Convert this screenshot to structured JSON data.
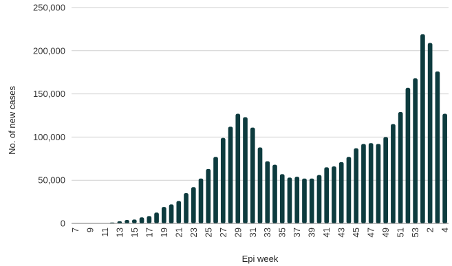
{
  "chart_data": {
    "type": "bar",
    "title": "",
    "xlabel": "Epi week",
    "ylabel": "No. of new cases",
    "ylim": [
      0,
      250000
    ],
    "yticks": [
      0,
      50000,
      100000,
      150000,
      200000,
      250000
    ],
    "ytick_labels": [
      "0",
      "50,000",
      "100,000",
      "150,000",
      "200,000",
      "250,000"
    ],
    "grid": "horizontal",
    "bar_color": "#0d3b3e",
    "categories": [
      "7",
      "8",
      "9",
      "10",
      "11",
      "12",
      "13",
      "14",
      "15",
      "16",
      "17",
      "18",
      "19",
      "20",
      "21",
      "22",
      "23",
      "24",
      "25",
      "26",
      "27",
      "28",
      "29",
      "30",
      "31",
      "32",
      "33",
      "34",
      "35",
      "36",
      "37",
      "38",
      "39",
      "40",
      "41",
      "42",
      "43",
      "44",
      "45",
      "46",
      "47",
      "48",
      "49",
      "50",
      "51",
      "52",
      "53",
      "1",
      "2",
      "3",
      "4"
    ],
    "shown_tick_labels": [
      "7",
      "9",
      "11",
      "13",
      "15",
      "17",
      "19",
      "21",
      "23",
      "25",
      "27",
      "29",
      "31",
      "33",
      "35",
      "37",
      "39",
      "41",
      "43",
      "45",
      "47",
      "49",
      "51",
      "53",
      "2",
      "4"
    ],
    "values": [
      0,
      0,
      0,
      0,
      0,
      1000,
      2500,
      4000,
      4500,
      7000,
      8500,
      12500,
      19000,
      22000,
      26000,
      35000,
      42000,
      52000,
      63000,
      77000,
      99000,
      112000,
      127000,
      123000,
      111000,
      88000,
      72000,
      68000,
      57000,
      53000,
      54000,
      52000,
      52000,
      56000,
      65000,
      66000,
      71000,
      77000,
      87000,
      92000,
      93000,
      92000,
      100000,
      115000,
      129000,
      157000,
      168000,
      219000,
      209000,
      176000,
      127000
    ]
  }
}
